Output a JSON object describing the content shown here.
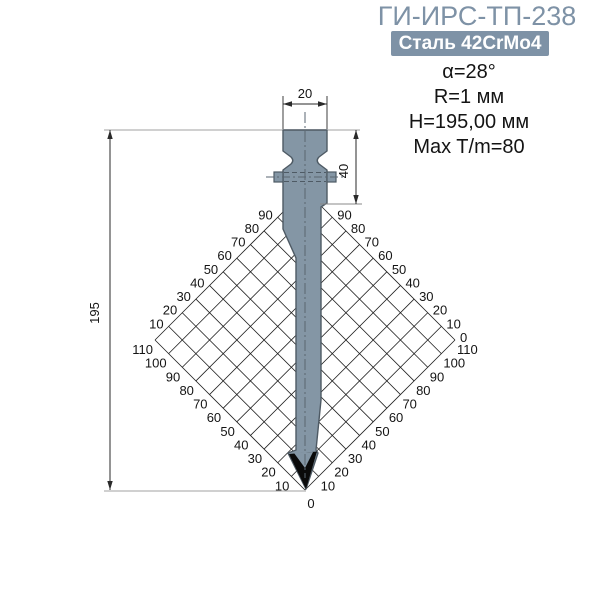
{
  "header": {
    "title": "ГИ-ИРС-ТП-238",
    "badge": "Сталь 42CrMo4",
    "specs": [
      "α=28°",
      "R=1 мм",
      "H=195,00 мм",
      "Max T/m=80"
    ]
  },
  "drawing": {
    "dimensions": {
      "shank_width": "20",
      "clamp_height": "40",
      "total_height": "195"
    },
    "grid": {
      "upper_left_labels": [
        "90",
        "80",
        "70",
        "60",
        "50",
        "40",
        "30",
        "20",
        "10"
      ],
      "upper_right_labels": [
        "90",
        "80",
        "70",
        "60",
        "50",
        "40",
        "30",
        "20",
        "10",
        "0"
      ],
      "lower_left_labels": [
        "110",
        "100",
        "90",
        "80",
        "70",
        "60",
        "50",
        "40",
        "30",
        "20",
        "10"
      ],
      "lower_right_labels": [
        "110",
        "100",
        "90",
        "80",
        "70",
        "60",
        "50",
        "40",
        "30",
        "20",
        "10"
      ],
      "origin_label": "0"
    }
  },
  "colors": {
    "accent": "#7e92a6",
    "badge_text": "#ffffff",
    "tool_fill": "#8496a5",
    "tool_outline": "#4e5a64",
    "tip_black": "#0a0a0a",
    "grid_line": "#1f1f1f",
    "dim_line": "#2a2a2a",
    "extension_gray": "#b5b5b5",
    "text_dark": "#141414"
  }
}
